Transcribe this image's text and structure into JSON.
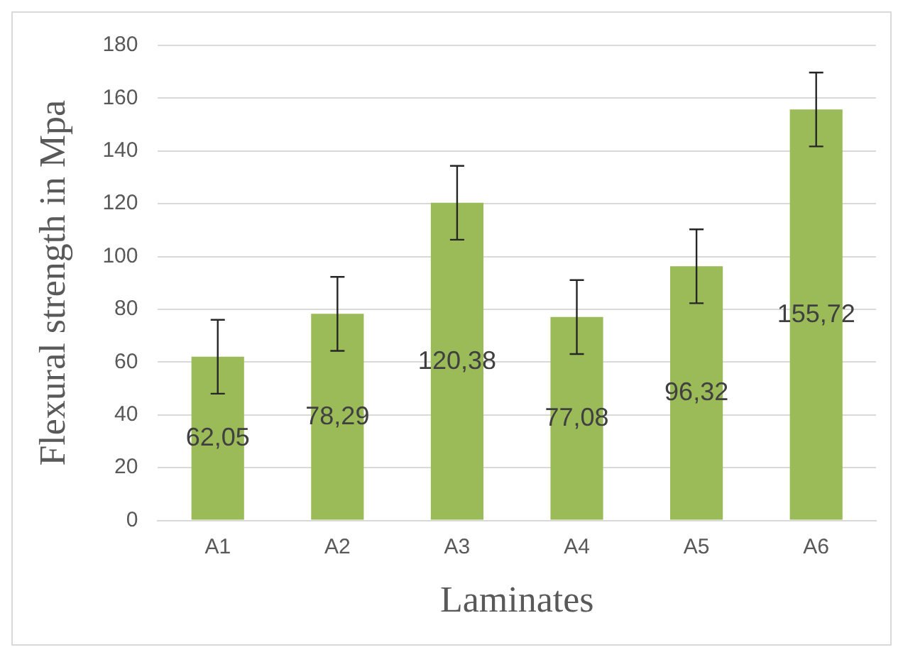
{
  "chart_data": {
    "type": "bar",
    "xlabel": "Laminates",
    "ylabel": "Flexural strength in Mpa",
    "categories": [
      "A1",
      "A2",
      "A3",
      "A4",
      "A5",
      "A6"
    ],
    "values": [
      62.05,
      78.29,
      120.38,
      77.08,
      96.32,
      155.72
    ],
    "value_labels": [
      "62,05",
      "78,29",
      "120,38",
      "77,08",
      "96,32",
      "155,72"
    ],
    "errors": [
      14,
      14,
      14,
      14,
      14,
      14
    ],
    "color": "#9bbb59",
    "ylim": [
      0,
      180
    ],
    "yticks": [
      0,
      20,
      40,
      60,
      80,
      100,
      120,
      140,
      160,
      180
    ],
    "grid": "y",
    "legend": false
  }
}
